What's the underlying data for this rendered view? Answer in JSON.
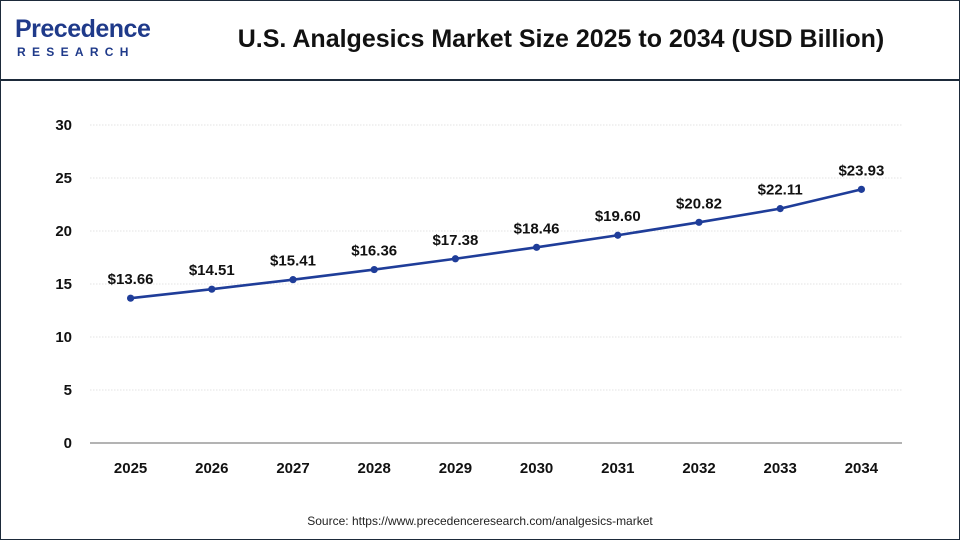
{
  "brand": {
    "logo_top": "Precedence",
    "logo_bottom": "RESEARCH"
  },
  "colors": {
    "line": "#1f3d99",
    "marker": "#1f3d99",
    "accent_dot": "#e0312b",
    "grid": "#e3e3e3",
    "axis": "#9a9a9a"
  },
  "chart_data": {
    "type": "line",
    "title": "U.S. Analgesics Market Size 2025 to 2034 (USD Billion)",
    "xlabel": "",
    "ylabel": "",
    "categories": [
      "2025",
      "2026",
      "2027",
      "2028",
      "2029",
      "2030",
      "2031",
      "2032",
      "2033",
      "2034"
    ],
    "series": [
      {
        "values": [
          13.66,
          14.51,
          15.41,
          16.36,
          17.38,
          18.46,
          19.6,
          20.82,
          22.11,
          23.93
        ],
        "labels": [
          "$13.66",
          "$14.51",
          "$15.41",
          "$16.36",
          "$17.38",
          "$18.46",
          "$19.60",
          "$20.82",
          "$22.11",
          "$23.93"
        ]
      }
    ],
    "ylim": [
      0,
      30
    ],
    "yticks": [
      0,
      5,
      10,
      15,
      20,
      25,
      30
    ],
    "grid": true,
    "legend": "none"
  },
  "source": "Source: https://www.precedenceresearch.com/analgesics-market"
}
